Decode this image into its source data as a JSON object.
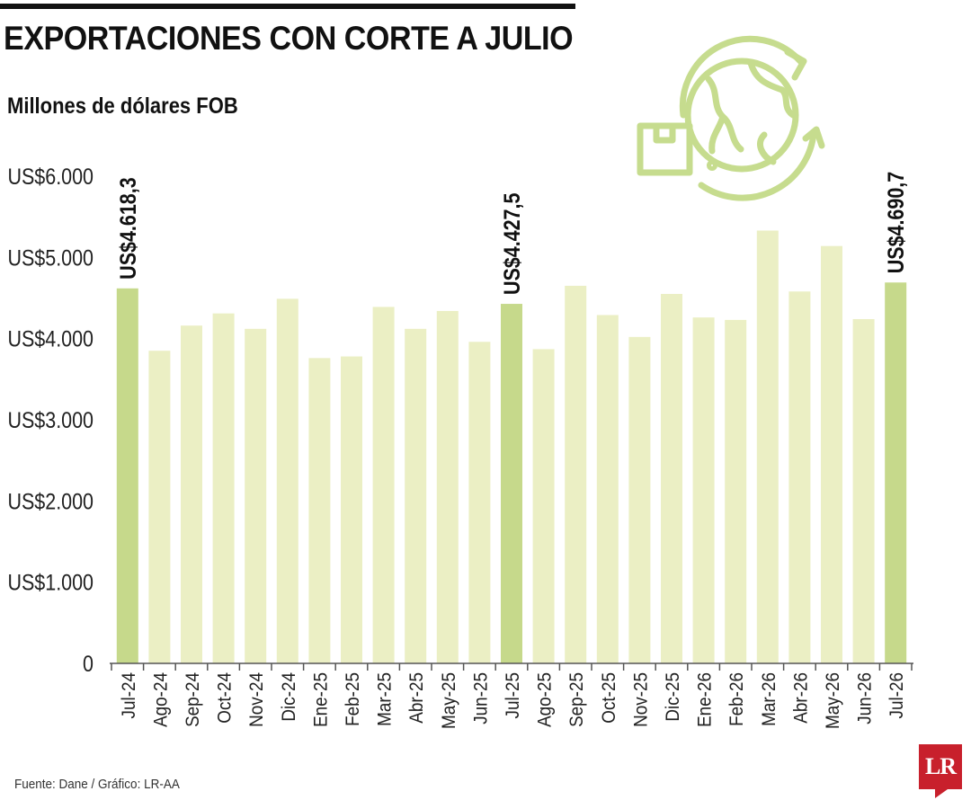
{
  "title": "EXPORTACIONES CON CORTE A JULIO",
  "subtitle": "Millones de dólares FOB",
  "source": "Fuente: Dane / Gráfico: LR-AA",
  "logo_text": "LR",
  "colors": {
    "bar_light": "#ebefc4",
    "bar_highlight": "#c6d98b",
    "icon": "#c6dc8e",
    "axis": "#555555",
    "logo": "#c8202c"
  },
  "icon_name": "globe-cycle-box-icon",
  "chart_data": {
    "type": "bar",
    "title": "EXPORTACIONES CON CORTE A JULIO",
    "ylabel": "Millones de dólares FOB",
    "ylim": [
      0,
      6000
    ],
    "yticks": [
      "0",
      "US$1.000",
      "US$2.000",
      "US$3.000",
      "US$4.000",
      "US$5.000",
      "US$6.000"
    ],
    "categories": [
      "Jul-24",
      "Ago-24",
      "Sep-24",
      "Oct-24",
      "Nov-24",
      "Dic-24",
      "Ene-25",
      "Feb-25",
      "Mar-25",
      "Abr-25",
      "May-25",
      "Jun-25",
      "Jul-25",
      "Ago-25",
      "Sep-25",
      "Oct-25",
      "Nov-25",
      "Dic-25",
      "Ene-26",
      "Feb-26",
      "Mar-26",
      "Abr-26",
      "May-26",
      "Jun-26",
      "Jul-26"
    ],
    "values": [
      4618.3,
      3850,
      4160,
      4310,
      4120,
      4490,
      3760,
      3780,
      4390,
      4120,
      4340,
      3960,
      4427.5,
      3870,
      4650,
      4290,
      4020,
      4550,
      4260,
      4230,
      5330,
      4580,
      5140,
      4240,
      4690.7
    ],
    "highlighted": [
      0,
      12,
      24
    ],
    "data_labels": [
      {
        "index": 0,
        "text": "US$4.618,3"
      },
      {
        "index": 12,
        "text": "US$4.427,5"
      },
      {
        "index": 24,
        "text": "US$4.690,7"
      }
    ],
    "grid": false,
    "legend": "none"
  }
}
